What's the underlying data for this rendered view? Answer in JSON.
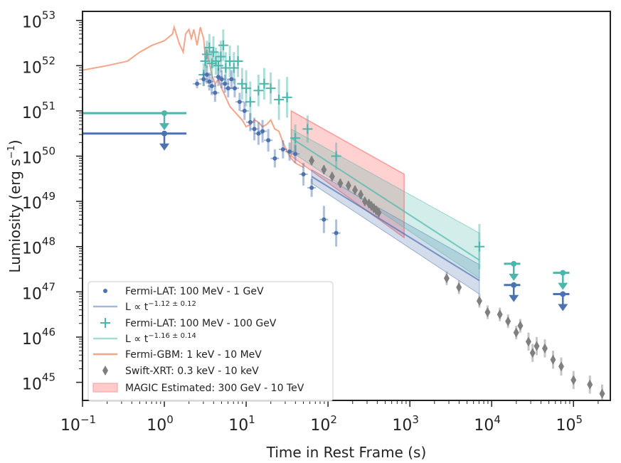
{
  "chart_data": {
    "type": "scatter",
    "xlabel": "Time in Rest Frame (s)",
    "ylabel_main": "Lumiosity (erg s",
    "ylabel_sup": "−1",
    "ylabel_close": ")",
    "xscale": "log",
    "yscale": "log",
    "xlim_exp": [
      -1,
      5.45
    ],
    "ylim_exp": [
      44.6,
      53.2
    ],
    "x_ticks": [
      {
        "exp": -1,
        "base": "10",
        "sup": "−1"
      },
      {
        "exp": 0,
        "base": "10",
        "sup": "0"
      },
      {
        "exp": 1,
        "base": "10",
        "sup": "1"
      },
      {
        "exp": 2,
        "base": "10",
        "sup": "2"
      },
      {
        "exp": 3,
        "base": "10",
        "sup": "3"
      },
      {
        "exp": 4,
        "base": "10",
        "sup": "4"
      },
      {
        "exp": 5,
        "base": "10",
        "sup": "5"
      }
    ],
    "y_ticks": [
      {
        "exp": 45,
        "base": "10",
        "sup": "45"
      },
      {
        "exp": 46,
        "base": "10",
        "sup": "46"
      },
      {
        "exp": 47,
        "base": "10",
        "sup": "47"
      },
      {
        "exp": 48,
        "base": "10",
        "sup": "48"
      },
      {
        "exp": 49,
        "base": "10",
        "sup": "49"
      },
      {
        "exp": 50,
        "base": "10",
        "sup": "50"
      },
      {
        "exp": 51,
        "base": "10",
        "sup": "51"
      },
      {
        "exp": 52,
        "base": "10",
        "sup": "52"
      },
      {
        "exp": 53,
        "base": "10",
        "sup": "53"
      }
    ],
    "colors": {
      "lat1": "#4c72b0",
      "lat2": "#4db6ac",
      "gbm": "#f4a58a",
      "xrt": "#7f7f7f",
      "magic": "#ff9999"
    },
    "legend": {
      "placement": "lower-left",
      "entries": [
        {
          "key": "lat1_points",
          "label": "Fermi-LAT: 100 MeV - 1 GeV"
        },
        {
          "key": "lat1_fit",
          "label_main": "L ∝ t",
          "label_sup": "−1.12 ± 0.12"
        },
        {
          "key": "lat2_points",
          "label": "Fermi-LAT: 100 MeV - 100 GeV"
        },
        {
          "key": "lat2_fit",
          "label_main": "L ∝ t",
          "label_sup": "−1.16 ± 0.14"
        },
        {
          "key": "gbm",
          "label": "Fermi-GBM: 1 keV - 10 MeV"
        },
        {
          "key": "xrt",
          "label": "Swift-XRT: 0.3 keV - 10 keV"
        },
        {
          "key": "magic",
          "label": "MAGIC Estimated: 300 GeV - 10 TeV"
        }
      ]
    },
    "series": [
      {
        "name": "Fermi-GBM: 1 keV - 10 MeV",
        "kind": "line",
        "color": "#f4a58a",
        "points_logx_logy": [
          [
            -1.0,
            51.9
          ],
          [
            -0.7,
            52.0
          ],
          [
            -0.45,
            52.1
          ],
          [
            -0.3,
            52.3
          ],
          [
            -0.15,
            52.45
          ],
          [
            0.0,
            52.55
          ],
          [
            0.1,
            52.7
          ],
          [
            0.12,
            52.85
          ],
          [
            0.18,
            52.5
          ],
          [
            0.23,
            52.3
          ],
          [
            0.26,
            52.7
          ],
          [
            0.3,
            52.8
          ],
          [
            0.33,
            52.6
          ],
          [
            0.36,
            52.8
          ],
          [
            0.4,
            52.45
          ],
          [
            0.44,
            52.85
          ],
          [
            0.48,
            52.6
          ],
          [
            0.5,
            52.2
          ],
          [
            0.52,
            52.35
          ],
          [
            0.55,
            52.05
          ],
          [
            0.58,
            51.8
          ],
          [
            0.62,
            51.6
          ],
          [
            0.66,
            51.7
          ],
          [
            0.7,
            51.5
          ],
          [
            0.75,
            51.3
          ],
          [
            0.8,
            51.1
          ],
          [
            0.85,
            51.0
          ],
          [
            0.9,
            50.9
          ],
          [
            0.95,
            50.8
          ],
          [
            1.0,
            50.65
          ],
          [
            1.05,
            50.7
          ],
          [
            1.1,
            50.8
          ],
          [
            1.15,
            50.75
          ],
          [
            1.2,
            50.65
          ],
          [
            1.25,
            50.7
          ],
          [
            1.3,
            50.8
          ],
          [
            1.35,
            50.6
          ],
          [
            1.4,
            50.55
          ],
          [
            1.45,
            50.3
          ],
          [
            1.5,
            50.1
          ],
          [
            1.55,
            49.95
          ],
          [
            1.6,
            49.85
          ],
          [
            1.65,
            49.8
          ],
          [
            1.7,
            49.75
          ]
        ]
      },
      {
        "name": "Fermi-LAT: 100 MeV - 100 GeV",
        "kind": "points",
        "color": "#4db6ac",
        "points_logx_logy_err": [
          [
            0.48,
            51.8,
            0.25
          ],
          [
            0.5,
            52.1,
            0.3
          ],
          [
            0.52,
            52.25,
            0.3
          ],
          [
            0.55,
            52.4,
            0.3
          ],
          [
            0.58,
            52.05,
            0.3
          ],
          [
            0.6,
            52.3,
            0.35
          ],
          [
            0.63,
            52.1,
            0.3
          ],
          [
            0.66,
            52.0,
            0.3
          ],
          [
            0.69,
            52.2,
            0.35
          ],
          [
            0.72,
            52.45,
            0.35
          ],
          [
            0.75,
            51.95,
            0.35
          ],
          [
            0.8,
            52.1,
            0.35
          ],
          [
            0.85,
            51.95,
            0.35
          ],
          [
            0.9,
            52.1,
            0.35
          ],
          [
            0.95,
            51.6,
            0.35
          ],
          [
            1.0,
            51.5,
            0.4
          ],
          [
            1.05,
            51.2,
            0.45
          ],
          [
            1.15,
            51.45,
            0.35
          ],
          [
            1.22,
            51.6,
            0.35
          ],
          [
            1.3,
            51.5,
            0.35
          ],
          [
            1.4,
            51.25,
            0.45
          ],
          [
            1.5,
            51.3,
            0.45
          ],
          [
            1.6,
            50.4,
            0.3
          ],
          [
            1.75,
            50.6,
            0.3
          ],
          [
            2.1,
            50.0,
            0.3
          ],
          [
            3.85,
            48.0,
            0.5
          ]
        ]
      },
      {
        "name": "Fermi-LAT: 100 MeV - 1 GeV",
        "kind": "points",
        "color": "#4c72b0",
        "points_logx_logy_err": [
          [
            0.4,
            51.6,
            0.1
          ],
          [
            0.48,
            51.7,
            0.15
          ],
          [
            0.52,
            51.8,
            0.2
          ],
          [
            0.55,
            51.65,
            0.2
          ],
          [
            0.58,
            51.55,
            0.2
          ],
          [
            0.62,
            51.4,
            0.2
          ],
          [
            0.66,
            51.75,
            0.2
          ],
          [
            0.7,
            51.7,
            0.2
          ],
          [
            0.74,
            51.6,
            0.2
          ],
          [
            0.78,
            51.5,
            0.2
          ],
          [
            0.82,
            51.7,
            0.2
          ],
          [
            0.86,
            51.5,
            0.2
          ],
          [
            0.92,
            51.2,
            0.2
          ],
          [
            0.98,
            51.0,
            0.2
          ],
          [
            1.05,
            50.75,
            0.2
          ],
          [
            1.1,
            50.6,
            0.25
          ],
          [
            1.15,
            50.5,
            0.25
          ],
          [
            1.2,
            50.55,
            0.25
          ],
          [
            1.27,
            50.35,
            0.25
          ],
          [
            1.35,
            49.95,
            0.2
          ],
          [
            1.45,
            50.15,
            0.2
          ],
          [
            1.53,
            50.1,
            0.2
          ],
          [
            1.6,
            50.05,
            0.2
          ],
          [
            1.7,
            49.6,
            0.25
          ],
          [
            1.8,
            49.3,
            0.2
          ],
          [
            1.95,
            48.6,
            0.3
          ],
          [
            2.1,
            48.3,
            0.3
          ]
        ]
      },
      {
        "name": "Swift-XRT: 0.3 keV - 10 keV",
        "kind": "points",
        "color": "#7f7f7f",
        "points_logx_logy_err": [
          [
            1.8,
            49.9,
            0.1
          ],
          [
            1.95,
            49.7,
            0.1
          ],
          [
            2.05,
            49.55,
            0.1
          ],
          [
            2.15,
            49.4,
            0.1
          ],
          [
            2.25,
            49.35,
            0.1
          ],
          [
            2.33,
            49.25,
            0.1
          ],
          [
            2.4,
            49.15,
            0.1
          ],
          [
            2.45,
            49.0,
            0.1
          ],
          [
            2.5,
            48.95,
            0.1
          ],
          [
            2.53,
            48.9,
            0.1
          ],
          [
            2.56,
            48.85,
            0.1
          ],
          [
            2.59,
            48.8,
            0.1
          ],
          [
            2.62,
            48.75,
            0.1
          ],
          [
            3.45,
            47.3,
            0.15
          ],
          [
            3.6,
            47.1,
            0.15
          ],
          [
            3.85,
            46.8,
            0.15
          ],
          [
            3.95,
            46.55,
            0.15
          ],
          [
            4.1,
            46.5,
            0.15
          ],
          [
            4.2,
            46.35,
            0.15
          ],
          [
            4.3,
            46.1,
            0.15
          ],
          [
            4.35,
            46.25,
            0.15
          ],
          [
            4.45,
            45.9,
            0.2
          ],
          [
            4.5,
            45.65,
            0.2
          ],
          [
            4.55,
            45.8,
            0.2
          ],
          [
            4.65,
            45.75,
            0.2
          ],
          [
            4.75,
            45.5,
            0.2
          ],
          [
            4.85,
            45.35,
            0.2
          ],
          [
            5.0,
            45.05,
            0.2
          ],
          [
            5.2,
            44.95,
            0.2
          ],
          [
            5.35,
            44.75,
            0.2
          ]
        ]
      }
    ],
    "upper_limits": [
      {
        "color": "#4db6ac",
        "x_logmin": -1.0,
        "x_logmax": 0.27,
        "x_marker": 0.0,
        "y": 50.95
      },
      {
        "color": "#4c72b0",
        "x_logmin": -1.0,
        "x_logmax": 0.27,
        "x_marker": 0.0,
        "y": 50.5
      },
      {
        "color": "#4db6ac",
        "x_logmin": 4.15,
        "x_logmax": 4.35,
        "x_marker": 4.27,
        "y": 47.62
      },
      {
        "color": "#4c72b0",
        "x_logmin": 4.15,
        "x_logmax": 4.35,
        "x_marker": 4.27,
        "y": 47.15
      },
      {
        "color": "#4db6ac",
        "x_logmin": 4.75,
        "x_logmax": 4.95,
        "x_marker": 4.87,
        "y": 47.42
      },
      {
        "color": "#4c72b0",
        "x_logmin": 4.75,
        "x_logmax": 4.95,
        "x_marker": 4.87,
        "y": 46.95
      }
    ],
    "fits": [
      {
        "color": "#4c72b0",
        "x0": 1.8,
        "x1": 3.85,
        "y0": 49.55,
        "y1": 47.25,
        "band_top": [
          49.7,
          47.6
        ],
        "band_bot": [
          49.4,
          46.95
        ]
      },
      {
        "color": "#4db6ac",
        "x0": 1.55,
        "x1": 3.85,
        "y0": 50.4,
        "y1": 47.7,
        "band_top": [
          50.6,
          48.3
        ],
        "band_bot": [
          50.1,
          47.3
        ]
      }
    ],
    "magic_band": {
      "x0": 1.55,
      "x1": 2.93,
      "top0": 51.0,
      "top1": 49.6,
      "bot0": 50.0,
      "bot1": 48.2
    }
  }
}
